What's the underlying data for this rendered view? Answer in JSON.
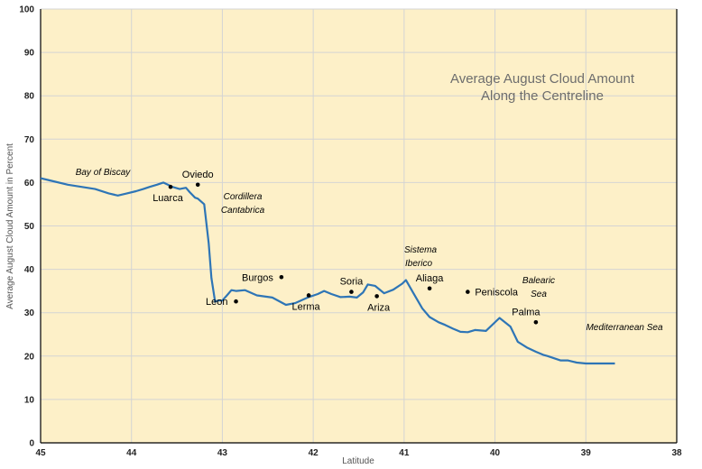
{
  "chart_data": {
    "type": "line",
    "title": [
      "Average August Cloud Amount",
      "Along the Centreline"
    ],
    "xlabel": "Latitude",
    "ylabel": "Average August Cloud Amount in Percent",
    "xlim": [
      45,
      38
    ],
    "ylim": [
      0,
      100
    ],
    "x_ticks": [
      45,
      44,
      43,
      42,
      41,
      40,
      39,
      38
    ],
    "y_ticks": [
      0,
      10,
      20,
      30,
      40,
      50,
      60,
      70,
      80,
      90,
      100
    ],
    "grid": true,
    "colors": {
      "background": "#fdf0c8",
      "grid": "#d4d4d4",
      "line": "#2e75b6",
      "axis": "#000000"
    },
    "series": [
      {
        "x": [
          45.0,
          44.9,
          44.7,
          44.55,
          44.4,
          44.25,
          44.15,
          44.05,
          43.95,
          43.87,
          43.8,
          43.72,
          43.65,
          43.6,
          43.55,
          43.47,
          43.4,
          43.36,
          43.3,
          43.27,
          43.2,
          43.15,
          43.12,
          43.08,
          43.05,
          43.0,
          42.95,
          42.9,
          42.85,
          42.75,
          42.62,
          42.45,
          42.3,
          42.2,
          42.05,
          41.95,
          41.88,
          41.8,
          41.7,
          41.6,
          41.52,
          41.45,
          41.4,
          41.32,
          41.22,
          41.12,
          41.02,
          40.98,
          40.9,
          40.8,
          40.72,
          40.62,
          40.55,
          40.46,
          40.38,
          40.3,
          40.22,
          40.1,
          39.95,
          39.83,
          39.75,
          39.65,
          39.55,
          39.47,
          39.42,
          39.35,
          39.28,
          39.2,
          39.1,
          39.0,
          38.9,
          38.8,
          38.72,
          38.68
        ],
        "y": [
          61.0,
          60.5,
          59.5,
          59.0,
          58.5,
          57.5,
          57.0,
          57.5,
          58.0,
          58.5,
          59.0,
          59.5,
          60.0,
          59.5,
          59.0,
          58.5,
          58.8,
          57.8,
          56.5,
          56.3,
          55.0,
          46.0,
          38.0,
          32.5,
          32.8,
          32.8,
          34.0,
          35.2,
          35.0,
          35.2,
          34.0,
          33.5,
          31.8,
          32.2,
          33.6,
          34.3,
          35.0,
          34.3,
          33.6,
          33.7,
          33.5,
          34.7,
          36.5,
          36.2,
          34.5,
          35.3,
          36.7,
          37.5,
          34.6,
          31.0,
          29.0,
          27.8,
          27.2,
          26.3,
          25.6,
          25.5,
          26.0,
          25.8,
          28.8,
          26.8,
          23.3,
          22.0,
          21.0,
          20.3,
          20.0,
          19.5,
          19.0,
          19.0,
          18.5,
          18.3,
          18.3,
          18.3,
          18.3,
          18.3
        ]
      }
    ],
    "points": [
      {
        "name": "Luarca",
        "x": 43.57,
        "y": 59.0,
        "label_pos": "below-left"
      },
      {
        "name": "Oviedo",
        "x": 43.27,
        "y": 59.5,
        "label_pos": "above"
      },
      {
        "name": "Leon",
        "x": 42.85,
        "y": 32.6,
        "label_pos": "left"
      },
      {
        "name": "Burgos",
        "x": 42.35,
        "y": 38.2,
        "label_pos": "left"
      },
      {
        "name": "Lerma",
        "x": 42.05,
        "y": 34.0,
        "label_pos": "below-left"
      },
      {
        "name": "Soria",
        "x": 41.58,
        "y": 34.8,
        "label_pos": "above"
      },
      {
        "name": "Ariza",
        "x": 41.3,
        "y": 33.8,
        "label_pos": "below"
      },
      {
        "name": "Aliaga",
        "x": 40.72,
        "y": 35.6,
        "label_pos": "above"
      },
      {
        "name": "Peniscola",
        "x": 40.3,
        "y": 34.8,
        "label_pos": "right"
      },
      {
        "name": "Palma",
        "x": 39.55,
        "y": 27.8,
        "label_pos": "above-left"
      }
    ],
    "regions": [
      {
        "lines": [
          "Bay of Biscay"
        ]
      },
      {
        "lines": [
          "Cordillera",
          "Cantabrica"
        ]
      },
      {
        "lines": [
          "Sistema",
          "Iberico"
        ]
      },
      {
        "lines": [
          "Balearic",
          "Sea"
        ]
      },
      {
        "lines": [
          "Mediterranean Sea"
        ]
      }
    ]
  }
}
